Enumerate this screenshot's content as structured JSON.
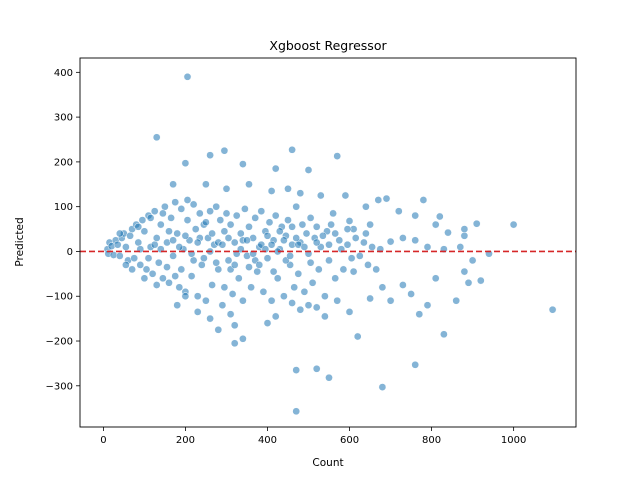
{
  "chart_data": {
    "type": "scatter",
    "title": "Xgboost Regressor",
    "xlabel": "Count",
    "ylabel": "Predicted",
    "xlim": [
      -57,
      1152
    ],
    "ylim": [
      -392,
      432
    ],
    "xticks": [
      0,
      200,
      400,
      600,
      800,
      1000
    ],
    "yticks": [
      -300,
      -200,
      -100,
      0,
      100,
      200,
      300,
      400
    ],
    "xtick_labels": [
      "0",
      "200",
      "400",
      "600",
      "800",
      "1000"
    ],
    "ytick_labels": [
      "−300",
      "−200",
      "−100",
      "0",
      "100",
      "200",
      "300",
      "400"
    ],
    "grid": false,
    "legend": "none",
    "point_color": "#1f77b4",
    "point_alpha": 0.55,
    "reference_line": {
      "y": 0,
      "color": "#d62728",
      "style": "dashed"
    },
    "points": [
      [
        205,
        390
      ],
      [
        130,
        255
      ],
      [
        295,
        225
      ],
      [
        460,
        227
      ],
      [
        200,
        197
      ],
      [
        340,
        195
      ],
      [
        260,
        215
      ],
      [
        420,
        185
      ],
      [
        500,
        182
      ],
      [
        570,
        213
      ],
      [
        170,
        150
      ],
      [
        250,
        150
      ],
      [
        355,
        150
      ],
      [
        300,
        140
      ],
      [
        410,
        135
      ],
      [
        450,
        140
      ],
      [
        480,
        130
      ],
      [
        530,
        125
      ],
      [
        590,
        125
      ],
      [
        640,
        100
      ],
      [
        670,
        115
      ],
      [
        690,
        118
      ],
      [
        780,
        115
      ],
      [
        720,
        90
      ],
      [
        760,
        80
      ],
      [
        810,
        60
      ],
      [
        840,
        42
      ],
      [
        880,
        35
      ],
      [
        910,
        62
      ],
      [
        1000,
        60
      ],
      [
        820,
        78
      ],
      [
        880,
        50
      ],
      [
        700,
        22
      ],
      [
        730,
        30
      ],
      [
        760,
        25
      ],
      [
        790,
        10
      ],
      [
        830,
        5
      ],
      [
        870,
        10
      ],
      [
        640,
        40
      ],
      [
        610,
        50
      ],
      [
        650,
        60
      ],
      [
        600,
        68
      ],
      [
        560,
        85
      ],
      [
        10,
        5
      ],
      [
        12,
        -5
      ],
      [
        15,
        20
      ],
      [
        20,
        12
      ],
      [
        25,
        -8
      ],
      [
        30,
        25
      ],
      [
        35,
        15
      ],
      [
        40,
        -10
      ],
      [
        45,
        30
      ],
      [
        50,
        40
      ],
      [
        55,
        10
      ],
      [
        60,
        -20
      ],
      [
        65,
        35
      ],
      [
        70,
        50
      ],
      [
        75,
        -15
      ],
      [
        80,
        60
      ],
      [
        85,
        20
      ],
      [
        90,
        -30
      ],
      [
        95,
        70
      ],
      [
        100,
        45
      ],
      [
        105,
        -40
      ],
      [
        110,
        80
      ],
      [
        115,
        10
      ],
      [
        120,
        -50
      ],
      [
        125,
        90
      ],
      [
        130,
        30
      ],
      [
        135,
        -25
      ],
      [
        140,
        60
      ],
      [
        145,
        -60
      ],
      [
        150,
        100
      ],
      [
        155,
        20
      ],
      [
        160,
        -70
      ],
      [
        165,
        75
      ],
      [
        170,
        -10
      ],
      [
        175,
        110
      ],
      [
        180,
        40
      ],
      [
        185,
        -80
      ],
      [
        190,
        95
      ],
      [
        195,
        5
      ],
      [
        200,
        -90
      ],
      [
        205,
        70
      ],
      [
        210,
        25
      ],
      [
        215,
        -55
      ],
      [
        220,
        105
      ],
      [
        225,
        50
      ],
      [
        230,
        -100
      ],
      [
        235,
        85
      ],
      [
        240,
        -30
      ],
      [
        245,
        60
      ],
      [
        250,
        -110
      ],
      [
        255,
        30
      ],
      [
        260,
        90
      ],
      [
        265,
        -75
      ],
      [
        270,
        15
      ],
      [
        275,
        100
      ],
      [
        280,
        -40
      ],
      [
        285,
        70
      ],
      [
        290,
        -120
      ],
      [
        295,
        45
      ],
      [
        300,
        85
      ],
      [
        305,
        -20
      ],
      [
        310,
        60
      ],
      [
        315,
        -95
      ],
      [
        320,
        20
      ],
      [
        325,
        80
      ],
      [
        330,
        -60
      ],
      [
        335,
        40
      ],
      [
        340,
        -110
      ],
      [
        345,
        95
      ],
      [
        350,
        -10
      ],
      [
        355,
        55
      ],
      [
        360,
        -80
      ],
      [
        365,
        30
      ],
      [
        370,
        75
      ],
      [
        375,
        -45
      ],
      [
        380,
        10
      ],
      [
        385,
        90
      ],
      [
        390,
        -90
      ],
      [
        395,
        45
      ],
      [
        400,
        -15
      ],
      [
        405,
        65
      ],
      [
        410,
        -110
      ],
      [
        415,
        25
      ],
      [
        420,
        80
      ],
      [
        425,
        -60
      ],
      [
        430,
        5
      ],
      [
        435,
        55
      ],
      [
        440,
        -100
      ],
      [
        445,
        35
      ],
      [
        450,
        70
      ],
      [
        455,
        -30
      ],
      [
        460,
        15
      ],
      [
        465,
        -80
      ],
      [
        470,
        100
      ],
      [
        475,
        -50
      ],
      [
        480,
        20
      ],
      [
        485,
        60
      ],
      [
        490,
        -90
      ],
      [
        495,
        40
      ],
      [
        500,
        -5
      ],
      [
        505,
        75
      ],
      [
        510,
        -70
      ],
      [
        515,
        30
      ],
      [
        520,
        55
      ],
      [
        525,
        -40
      ],
      [
        530,
        10
      ],
      [
        540,
        -100
      ],
      [
        545,
        45
      ],
      [
        550,
        -20
      ],
      [
        555,
        60
      ],
      [
        565,
        -60
      ],
      [
        575,
        25
      ],
      [
        585,
        -40
      ],
      [
        595,
        15
      ],
      [
        605,
        -15
      ],
      [
        615,
        30
      ],
      [
        625,
        -10
      ],
      [
        635,
        20
      ],
      [
        645,
        -30
      ],
      [
        655,
        10
      ],
      [
        665,
        -40
      ],
      [
        675,
        5
      ],
      [
        40,
        40
      ],
      [
        55,
        -30
      ],
      [
        70,
        -40
      ],
      [
        85,
        55
      ],
      [
        100,
        -60
      ],
      [
        115,
        75
      ],
      [
        130,
        -75
      ],
      [
        145,
        85
      ],
      [
        160,
        45
      ],
      [
        175,
        -55
      ],
      [
        190,
        -40
      ],
      [
        205,
        115
      ],
      [
        220,
        -20
      ],
      [
        235,
        30
      ],
      [
        250,
        65
      ],
      [
        265,
        40
      ],
      [
        280,
        20
      ],
      [
        295,
        -80
      ],
      [
        310,
        -40
      ],
      [
        325,
        -5
      ],
      [
        340,
        25
      ],
      [
        355,
        -35
      ],
      [
        370,
        -20
      ],
      [
        385,
        15
      ],
      [
        400,
        35
      ],
      [
        415,
        -45
      ],
      [
        430,
        45
      ],
      [
        445,
        -20
      ],
      [
        460,
        55
      ],
      [
        475,
        15
      ],
      [
        490,
        10
      ],
      [
        505,
        -25
      ],
      [
        520,
        20
      ],
      [
        535,
        35
      ],
      [
        550,
        15
      ],
      [
        565,
        40
      ],
      [
        580,
        5
      ],
      [
        595,
        50
      ],
      [
        610,
        -45
      ],
      [
        90,
        5
      ],
      [
        110,
        -15
      ],
      [
        125,
        15
      ],
      [
        140,
        5
      ],
      [
        155,
        -35
      ],
      [
        170,
        25
      ],
      [
        185,
        10
      ],
      [
        200,
        35
      ],
      [
        215,
        -5
      ],
      [
        230,
        20
      ],
      [
        245,
        -15
      ],
      [
        260,
        0
      ],
      [
        275,
        -25
      ],
      [
        290,
        15
      ],
      [
        305,
        30
      ],
      [
        320,
        -30
      ],
      [
        335,
        5
      ],
      [
        350,
        25
      ],
      [
        365,
        -5
      ],
      [
        380,
        -30
      ],
      [
        395,
        5
      ],
      [
        410,
        15
      ],
      [
        425,
        0
      ],
      [
        440,
        25
      ],
      [
        455,
        -10
      ],
      [
        470,
        30
      ],
      [
        180,
        -120
      ],
      [
        200,
        -100
      ],
      [
        230,
        -135
      ],
      [
        260,
        -150
      ],
      [
        280,
        -175
      ],
      [
        310,
        -140
      ],
      [
        320,
        -165
      ],
      [
        340,
        -195
      ],
      [
        320,
        -205
      ],
      [
        400,
        -160
      ],
      [
        420,
        -145
      ],
      [
        460,
        -115
      ],
      [
        480,
        -130
      ],
      [
        500,
        -120
      ],
      [
        520,
        -125
      ],
      [
        540,
        -145
      ],
      [
        570,
        -110
      ],
      [
        600,
        -135
      ],
      [
        620,
        -190
      ],
      [
        650,
        -105
      ],
      [
        680,
        -80
      ],
      [
        700,
        -110
      ],
      [
        730,
        -75
      ],
      [
        750,
        -95
      ],
      [
        770,
        -140
      ],
      [
        790,
        -120
      ],
      [
        810,
        -60
      ],
      [
        830,
        -185
      ],
      [
        860,
        -110
      ],
      [
        890,
        -70
      ],
      [
        920,
        -65
      ],
      [
        880,
        -45
      ],
      [
        900,
        -20
      ],
      [
        940,
        -5
      ],
      [
        470,
        -265
      ],
      [
        520,
        -262
      ],
      [
        550,
        -282
      ],
      [
        470,
        -357
      ],
      [
        680,
        -303
      ],
      [
        760,
        -253
      ],
      [
        1095,
        -130
      ]
    ]
  }
}
